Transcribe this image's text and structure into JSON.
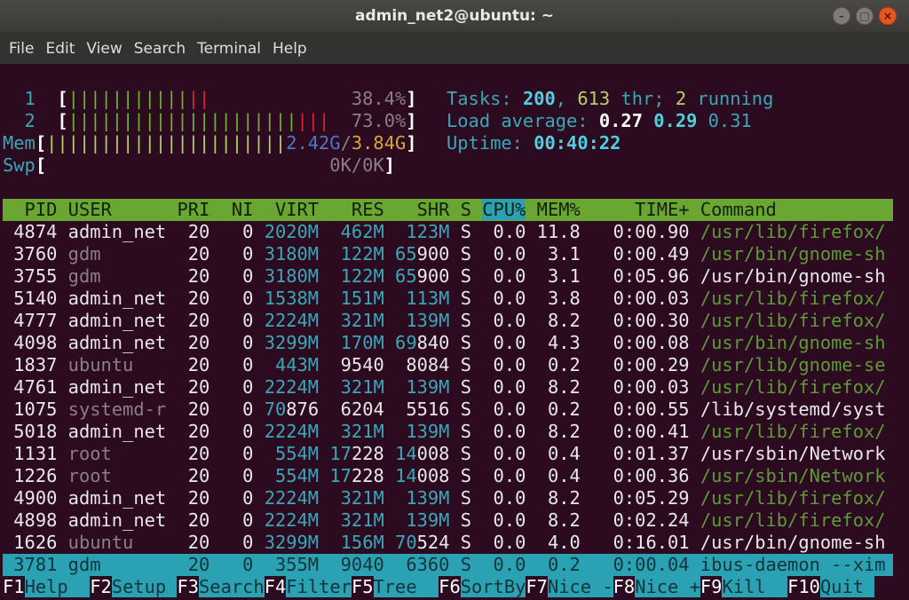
{
  "window": {
    "title": "admin_net2@ubuntu: ~",
    "buttons": [
      "minimize",
      "maximize",
      "close"
    ],
    "accent_close": "#e9541f"
  },
  "menu": [
    "File",
    "Edit",
    "View",
    "Search",
    "Terminal",
    "Help"
  ],
  "meters": {
    "cpu1": {
      "label": "1",
      "value": "38.4%",
      "bars_normal": 11,
      "bars_kernel": 2
    },
    "cpu2": {
      "label": "2",
      "value": "73.0%",
      "bars_normal": 21,
      "bars_kernel": 3
    },
    "mem": {
      "label": "Mem",
      "used": "2.42G",
      "total": "3.84G",
      "bars": 22
    },
    "swp": {
      "label": "Swp",
      "value": "0K/0K"
    }
  },
  "stats": {
    "tasks_label": "Tasks:",
    "tasks": "200",
    "thr": "613",
    "thr_label": "thr;",
    "running": "2",
    "running_label": "running",
    "load_label": "Load average:",
    "load1": "0.27",
    "load5": "0.29",
    "load15": "0.31",
    "uptime_label": "Uptime:",
    "uptime": "00:40:22"
  },
  "columns": [
    "PID",
    "USER",
    "PRI",
    "NI",
    "VIRT",
    "RES",
    "SHR",
    "S",
    "CPU%",
    "MEM%",
    "TIME+",
    "Command"
  ],
  "sort_column": "CPU%",
  "processes": [
    [
      "4874",
      "admin_net",
      "20",
      "0",
      "2020M",
      "462M",
      "123M",
      "S",
      "0.0",
      "11.8",
      "0:00.90",
      "/usr/lib/firefox/",
      "thread"
    ],
    [
      "3760",
      "gdm",
      "20",
      "0",
      "3180M",
      "122M",
      "65900",
      "S",
      "0.0",
      "3.1",
      "0:00.49",
      "/usr/bin/gnome-sh",
      "thread"
    ],
    [
      "3755",
      "gdm",
      "20",
      "0",
      "3180M",
      "122M",
      "65900",
      "S",
      "0.0",
      "3.1",
      "0:05.96",
      "/usr/bin/gnome-sh",
      "proc"
    ],
    [
      "5140",
      "admin_net",
      "20",
      "0",
      "1538M",
      "151M",
      "113M",
      "S",
      "0.0",
      "3.8",
      "0:00.03",
      "/usr/lib/firefox/",
      "thread"
    ],
    [
      "4777",
      "admin_net",
      "20",
      "0",
      "2224M",
      "321M",
      "139M",
      "S",
      "0.0",
      "8.2",
      "0:00.30",
      "/usr/lib/firefox/",
      "thread"
    ],
    [
      "4098",
      "admin_net",
      "20",
      "0",
      "3299M",
      "170M",
      "69840",
      "S",
      "0.0",
      "4.3",
      "0:00.08",
      "/usr/bin/gnome-sh",
      "thread"
    ],
    [
      "1837",
      "ubuntu",
      "20",
      "0",
      "443M",
      "9540",
      "8084",
      "S",
      "0.0",
      "0.2",
      "0:00.29",
      "/usr/lib/gnome-se",
      "thread"
    ],
    [
      "4761",
      "admin_net",
      "20",
      "0",
      "2224M",
      "321M",
      "139M",
      "S",
      "0.0",
      "8.2",
      "0:00.03",
      "/usr/lib/firefox/",
      "thread"
    ],
    [
      "1075",
      "systemd-r",
      "20",
      "0",
      "70876",
      "6204",
      "5516",
      "S",
      "0.0",
      "0.2",
      "0:00.55",
      "/lib/systemd/syst",
      "proc"
    ],
    [
      "5018",
      "admin_net",
      "20",
      "0",
      "2224M",
      "321M",
      "139M",
      "S",
      "0.0",
      "8.2",
      "0:00.41",
      "/usr/lib/firefox/",
      "thread"
    ],
    [
      "1131",
      "root",
      "20",
      "0",
      "554M",
      "17228",
      "14008",
      "S",
      "0.0",
      "0.4",
      "0:01.37",
      "/usr/sbin/Network",
      "proc"
    ],
    [
      "1226",
      "root",
      "20",
      "0",
      "554M",
      "17228",
      "14008",
      "S",
      "0.0",
      "0.4",
      "0:00.36",
      "/usr/sbin/Network",
      "thread"
    ],
    [
      "4900",
      "admin_net",
      "20",
      "0",
      "2224M",
      "321M",
      "139M",
      "S",
      "0.0",
      "8.2",
      "0:05.29",
      "/usr/lib/firefox/",
      "thread"
    ],
    [
      "4898",
      "admin_net",
      "20",
      "0",
      "2224M",
      "321M",
      "139M",
      "S",
      "0.0",
      "8.2",
      "0:02.24",
      "/usr/lib/firefox/",
      "thread"
    ],
    [
      "1626",
      "ubuntu",
      "20",
      "0",
      "3299M",
      "156M",
      "70524",
      "S",
      "0.0",
      "4.0",
      "0:16.01",
      "/usr/bin/gnome-sh",
      "proc"
    ]
  ],
  "selected": [
    "3781",
    "gdm",
    "20",
    "0",
    "355M",
    "9040",
    "6360",
    "S",
    "0.0",
    "0.2",
    "0:00.04",
    "ibus-daemon --xim"
  ],
  "function_keys": [
    [
      "F1",
      "Help"
    ],
    [
      "F2",
      "Setup"
    ],
    [
      "F3",
      "Search"
    ],
    [
      "F4",
      "Filter"
    ],
    [
      "F5",
      "Tree"
    ],
    [
      "F6",
      "SortBy"
    ],
    [
      "F7",
      "Nice -"
    ],
    [
      "F8",
      "Nice +"
    ],
    [
      "F9",
      "Kill"
    ],
    [
      "F10",
      "Quit"
    ]
  ]
}
